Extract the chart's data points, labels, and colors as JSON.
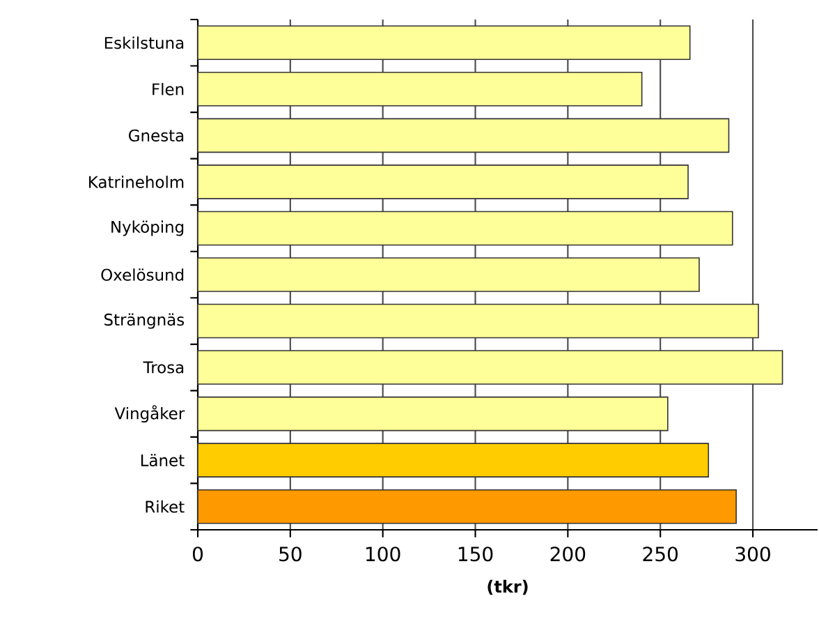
{
  "chart_data": {
    "type": "bar",
    "orientation": "horizontal",
    "xlabel": "(tkr)",
    "categories": [
      "Eskilstuna",
      "Flen",
      "Gnesta",
      "Katrineholm",
      "Nyköping",
      "Oxelösund",
      "Strängnäs",
      "Trosa",
      "Vingåker",
      "Länet",
      "Riket"
    ],
    "values": [
      266,
      240,
      287,
      265,
      289,
      271,
      303,
      316,
      254,
      276,
      291
    ],
    "colors": [
      "#ffff99",
      "#ffff99",
      "#ffff99",
      "#ffff99",
      "#ffff99",
      "#ffff99",
      "#ffff99",
      "#ffff99",
      "#ffff99",
      "#ffcc00",
      "#ff9900"
    ],
    "xlim": [
      0,
      335
    ],
    "xticks": [
      0,
      50,
      100,
      150,
      200,
      250,
      300
    ],
    "grid": "x"
  }
}
